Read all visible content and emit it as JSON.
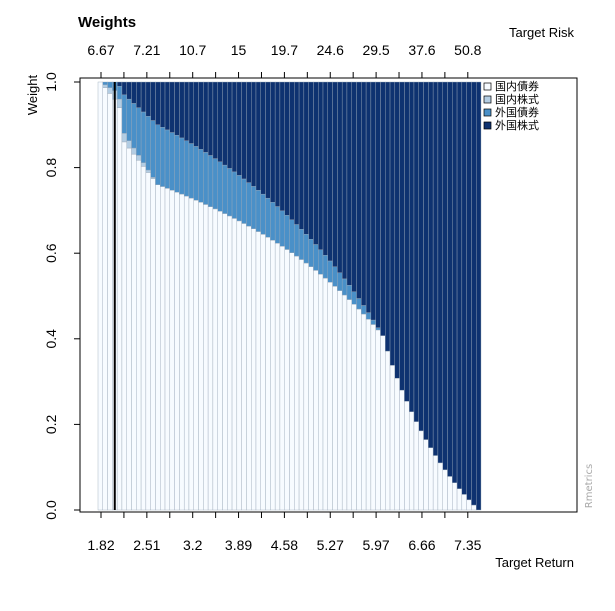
{
  "chart_data": {
    "type": "area",
    "title": "Weights",
    "xlabel": "Target Return",
    "x2label": "Target Risk",
    "ylabel": "Weight",
    "credit": "Rmetrics",
    "ylim": [
      0,
      1
    ],
    "yticks": [
      "0.0",
      "0.2",
      "0.4",
      "0.6",
      "0.8",
      "1.0"
    ],
    "target_return_ticks": [
      "1.82",
      "2.51",
      "3.2",
      "3.89",
      "4.58",
      "5.27",
      "5.97",
      "6.66",
      "7.35"
    ],
    "target_risk_ticks": [
      "6.67",
      "7.21",
      "10.7",
      "15",
      "19.7",
      "24.6",
      "29.5",
      "37.6",
      "50.8"
    ],
    "n_portfolios": 80,
    "min_variance_portfolio": 4,
    "colors": [
      "#F7FBFF",
      "#B3CDE3",
      "#4A90C8",
      "#0E3270"
    ],
    "legend": {
      "position": "top-right",
      "entries": [
        "国内債券",
        "国内株式",
        "外国債券",
        "外国株式"
      ]
    },
    "series": [
      {
        "name": "国内債券",
        "color": "#F7FBFF",
        "weight_profile": [
          [
            1,
            1.0
          ],
          [
            4,
            0.96
          ],
          [
            5,
            0.94
          ],
          [
            6,
            0.86
          ],
          [
            13,
            0.76
          ],
          [
            80,
            0.0
          ]
        ]
      },
      {
        "name": "国内株式",
        "color": "#B3CDE3",
        "weight_profile": [
          [
            1,
            0.0
          ],
          [
            4,
            0.02
          ],
          [
            5,
            0.02
          ],
          [
            6,
            0.02
          ],
          [
            13,
            0.0
          ],
          [
            80,
            0.0
          ]
        ]
      },
      {
        "name": "外国債券",
        "color": "#4A90C8",
        "weight_profile": [
          [
            1,
            0.0
          ],
          [
            4,
            0.02
          ],
          [
            5,
            0.03
          ],
          [
            6,
            0.09
          ],
          [
            13,
            0.14
          ],
          [
            60,
            0.0
          ],
          [
            80,
            0.0
          ]
        ]
      },
      {
        "name": "外国株式",
        "color": "#0E3270",
        "weight_profile": [
          [
            1,
            0.0
          ],
          [
            4,
            0.0
          ],
          [
            5,
            0.01
          ],
          [
            6,
            0.03
          ],
          [
            13,
            0.1
          ],
          [
            60,
            0.33
          ],
          [
            62,
            0.4
          ],
          [
            80,
            1.0
          ]
        ]
      }
    ]
  }
}
